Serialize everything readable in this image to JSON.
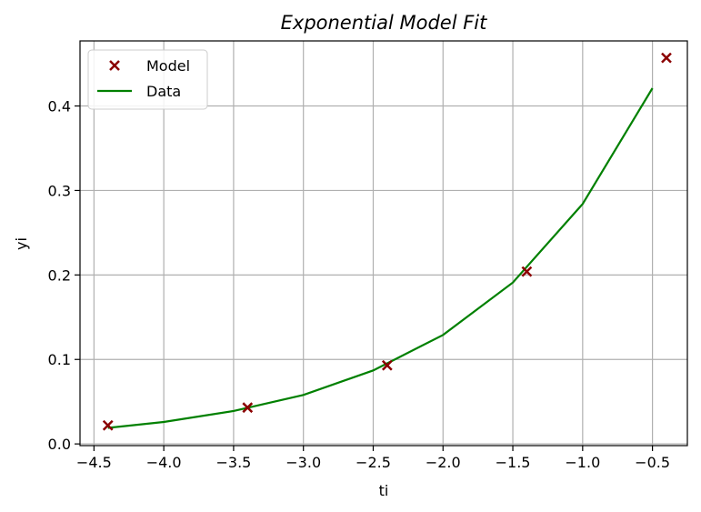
{
  "chart_data": {
    "type": "line",
    "title": "Exponential Model Fit",
    "xlabel": "ti",
    "ylabel": "yi",
    "xlim": [
      -4.6,
      -0.25
    ],
    "ylim": [
      -0.002,
      0.477
    ],
    "x_ticks": [
      -4.5,
      -4.0,
      -3.5,
      -3.0,
      -2.5,
      -2.0,
      -1.5,
      -1.0,
      -0.5
    ],
    "x_tick_labels": [
      "−4.5",
      "−4.0",
      "−3.5",
      "−3.0",
      "−2.5",
      "−2.0",
      "−1.5",
      "−1.0",
      "−0.5"
    ],
    "y_ticks": [
      0.0,
      0.1,
      0.2,
      0.3,
      0.4
    ],
    "y_tick_labels": [
      "0.0",
      "0.1",
      "0.2",
      "0.3",
      "0.4"
    ],
    "grid": true,
    "legend_position": "top-left",
    "series": [
      {
        "name": "Model",
        "kind": "scatter",
        "marker": "x",
        "color": "#8b0000",
        "points": [
          {
            "x": -4.4,
            "y": 0.022
          },
          {
            "x": -3.4,
            "y": 0.043
          },
          {
            "x": -2.4,
            "y": 0.093
          },
          {
            "x": -1.4,
            "y": 0.204
          },
          {
            "x": -0.4,
            "y": 0.457
          }
        ]
      },
      {
        "name": "Data",
        "kind": "line",
        "color": "#008000",
        "points": [
          {
            "x": -4.4,
            "y": 0.019
          },
          {
            "x": -4.0,
            "y": 0.026
          },
          {
            "x": -3.5,
            "y": 0.039
          },
          {
            "x": -3.0,
            "y": 0.058
          },
          {
            "x": -2.5,
            "y": 0.087
          },
          {
            "x": -2.0,
            "y": 0.129
          },
          {
            "x": -1.5,
            "y": 0.191
          },
          {
            "x": -1.0,
            "y": 0.284
          },
          {
            "x": -0.5,
            "y": 0.421
          }
        ]
      }
    ]
  }
}
